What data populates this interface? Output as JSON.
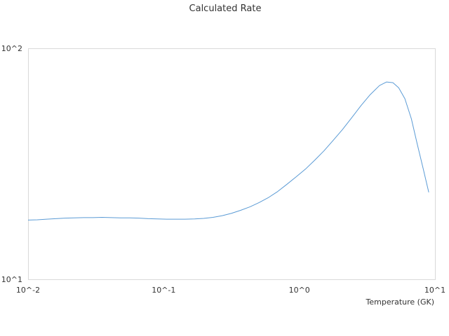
{
  "chart_data": {
    "type": "line",
    "title": "Calculated Rate",
    "xlabel": "Temperature (GK)",
    "ylabel": "",
    "xscale": "log",
    "yscale": "log",
    "xlim": [
      0.01,
      10
    ],
    "ylim": [
      10,
      100
    ],
    "xticks": [
      {
        "value": 0.01,
        "label": "10^-2"
      },
      {
        "value": 0.1,
        "label": "10^-1"
      },
      {
        "value": 1,
        "label": "10^0"
      },
      {
        "value": 10,
        "label": "10^1"
      }
    ],
    "yticks": [
      {
        "value": 10,
        "label": "10^1"
      },
      {
        "value": 100,
        "label": "10^2"
      }
    ],
    "grid": false,
    "legend": "none",
    "colors": {
      "series": "#5b9bd5",
      "frame": "#d9d9d9",
      "text": "#333333"
    },
    "series": [
      {
        "x": [
          0.01,
          0.0117,
          0.0137,
          0.016,
          0.0187,
          0.0219,
          0.0257,
          0.03,
          0.0351,
          0.0411,
          0.0481,
          0.0562,
          0.0658,
          0.077,
          0.0901,
          0.105,
          0.123,
          0.144,
          0.169,
          0.197,
          0.231,
          0.27,
          0.316,
          0.37,
          0.433,
          0.506,
          0.593,
          0.693,
          0.811,
          0.949,
          1.11,
          1.3,
          1.52,
          1.78,
          2.08,
          2.43,
          2.85,
          3.33,
          3.9,
          4.4,
          4.9,
          5.4,
          6.0,
          6.7,
          7.4,
          8.2,
          9.0
        ],
        "y": [
          18.05,
          18.1,
          18.2,
          18.3,
          18.4,
          18.45,
          18.5,
          18.5,
          18.55,
          18.5,
          18.45,
          18.45,
          18.4,
          18.3,
          18.25,
          18.2,
          18.2,
          18.2,
          18.25,
          18.35,
          18.55,
          18.85,
          19.3,
          19.9,
          20.6,
          21.5,
          22.6,
          24.0,
          25.8,
          27.8,
          30.0,
          32.8,
          36.0,
          40.0,
          44.5,
          50.0,
          56.5,
          63.0,
          69.0,
          71.5,
          71.0,
          67.5,
          60.5,
          49.5,
          38.5,
          30.0,
          23.8
        ]
      }
    ]
  }
}
